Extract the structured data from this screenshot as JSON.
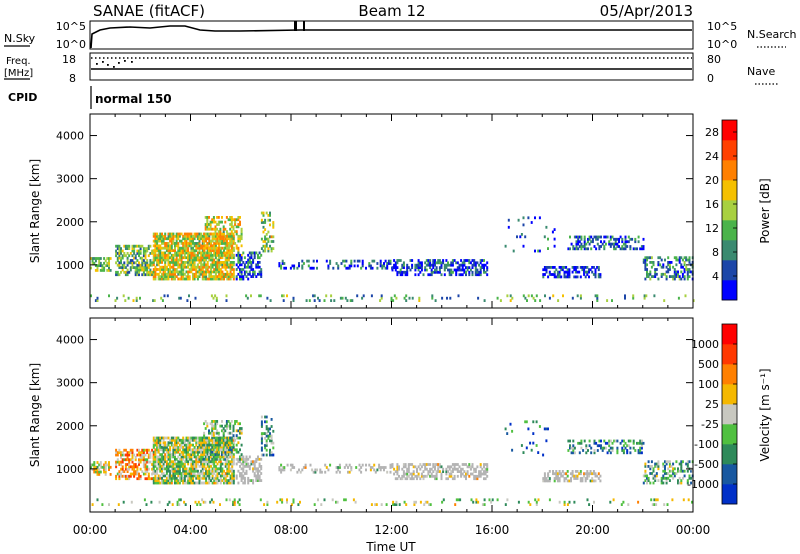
{
  "header": {
    "station": "SANAE (fitACF)",
    "beam": "Beam 12",
    "date": "05/Apr/2013"
  },
  "panels": {
    "nsky": {
      "label": "N.Sky",
      "ticks_left": [
        "10^5",
        "10^0"
      ],
      "label_right": "N.Search",
      "ticks_right": [
        "10^5",
        "10^0"
      ]
    },
    "freq": {
      "label_line1": "Freq.",
      "label_line2": "[MHz]",
      "ticks_left": [
        "18",
        "8"
      ],
      "label_right": "Nave",
      "ticks_right": [
        "80",
        "0"
      ]
    },
    "cpid": {
      "label": "CPID",
      "value": "normal 150"
    }
  },
  "colors": {
    "power_scale": [
      "#0000ff",
      "#1c46a8",
      "#3a8a70",
      "#4ab34a",
      "#a8d040",
      "#f5c000",
      "#ff8000",
      "#ff4000",
      "#ff0000"
    ],
    "velocity_scale": [
      "#0030c8",
      "#1858a0",
      "#2e8a5a",
      "#50c040",
      "#c8c8c0",
      "#f5b800",
      "#ff8000",
      "#ff3800",
      "#ff0000"
    ],
    "ground_scatter": "#b4b4b4"
  },
  "chart_data": [
    {
      "type": "heatmap",
      "name": "power",
      "ylabel": "Slant Range [km]",
      "ylim": [
        0,
        4500
      ],
      "yticks": [
        1000,
        2000,
        3000,
        4000
      ],
      "xlim": [
        0,
        24
      ],
      "colorbar": {
        "label": "Power [dB]",
        "ticks": [
          "4",
          "8",
          "12",
          "16",
          "20",
          "24",
          "28"
        ],
        "range": [
          0,
          30
        ]
      },
      "regions": [
        {
          "t0": 0.0,
          "t1": 0.8,
          "r0": 850,
          "r1": 1150,
          "level": 0.4,
          "density": 0.6
        },
        {
          "t0": 1.0,
          "t1": 2.5,
          "r0": 750,
          "r1": 1450,
          "level": 0.4,
          "density": 0.6
        },
        {
          "t0": 2.5,
          "t1": 5.7,
          "r0": 650,
          "r1": 1750,
          "level": 0.55,
          "density": 0.8
        },
        {
          "t0": 4.5,
          "t1": 6.0,
          "r0": 1200,
          "r1": 2100,
          "level": 0.55,
          "density": 0.45
        },
        {
          "t0": 5.8,
          "t1": 6.8,
          "r0": 650,
          "r1": 1300,
          "level": 0.2,
          "density": 0.5
        },
        {
          "t0": 6.8,
          "t1": 7.3,
          "r0": 1300,
          "r1": 2200,
          "level": 0.45,
          "density": 0.35
        },
        {
          "t0": 7.5,
          "t1": 12.0,
          "r0": 900,
          "r1": 1100,
          "level": 0.15,
          "density": 0.25
        },
        {
          "t0": 12.0,
          "t1": 15.8,
          "r0": 750,
          "r1": 1100,
          "level": 0.15,
          "density": 0.5
        },
        {
          "t0": 16.5,
          "t1": 18.5,
          "r0": 1300,
          "r1": 2100,
          "level": 0.15,
          "density": 0.05
        },
        {
          "t0": 18.0,
          "t1": 20.3,
          "r0": 700,
          "r1": 950,
          "level": 0.1,
          "density": 0.55
        },
        {
          "t0": 19.0,
          "t1": 22.0,
          "r0": 1350,
          "r1": 1650,
          "level": 0.2,
          "density": 0.4
        },
        {
          "t0": 22.0,
          "t1": 24.0,
          "r0": 650,
          "r1": 1200,
          "level": 0.25,
          "density": 0.4
        },
        {
          "t0": 0.0,
          "t1": 24.0,
          "r0": 150,
          "r1": 300,
          "level": 0.35,
          "density": 0.12
        }
      ]
    },
    {
      "type": "heatmap",
      "name": "velocity",
      "ylabel": "Slant Range [km]",
      "ylim": [
        0,
        4500
      ],
      "yticks": [
        1000,
        2000,
        3000,
        4000
      ],
      "xlim": [
        0,
        24
      ],
      "xlabel": "Time UT",
      "xticks": [
        "00:00",
        "04:00",
        "08:00",
        "12:00",
        "16:00",
        "20:00",
        "00:00"
      ],
      "colorbar": {
        "label": "Velocity [m s⁻¹]",
        "ticks": [
          "1000",
          "500",
          "100",
          "25",
          "-25",
          "-100",
          "-500",
          "-1000"
        ],
        "range": [
          -1000,
          1000
        ]
      },
      "regions": [
        {
          "t0": 0.0,
          "t1": 0.8,
          "r0": 850,
          "r1": 1150,
          "level": 0.55,
          "density": 0.6,
          "gs": false
        },
        {
          "t0": 1.0,
          "t1": 2.5,
          "r0": 750,
          "r1": 1450,
          "level": 0.65,
          "density": 0.6,
          "gs": false
        },
        {
          "t0": 2.5,
          "t1": 5.7,
          "r0": 650,
          "r1": 1750,
          "level": 0.45,
          "density": 0.8,
          "gs": false
        },
        {
          "t0": 4.5,
          "t1": 6.0,
          "r0": 1200,
          "r1": 2100,
          "level": 0.4,
          "density": 0.45,
          "gs": false
        },
        {
          "t0": 5.8,
          "t1": 6.8,
          "r0": 650,
          "r1": 1300,
          "level": 0.5,
          "density": 0.5,
          "gs": true
        },
        {
          "t0": 6.8,
          "t1": 7.3,
          "r0": 1300,
          "r1": 2200,
          "level": 0.3,
          "density": 0.35,
          "gs": false
        },
        {
          "t0": 7.5,
          "t1": 12.0,
          "r0": 900,
          "r1": 1100,
          "level": 0.5,
          "density": 0.25,
          "gs": true
        },
        {
          "t0": 12.0,
          "t1": 15.8,
          "r0": 750,
          "r1": 1100,
          "level": 0.5,
          "density": 0.5,
          "gs": true
        },
        {
          "t0": 16.5,
          "t1": 18.5,
          "r0": 1300,
          "r1": 2100,
          "level": 0.2,
          "density": 0.05,
          "gs": false
        },
        {
          "t0": 18.0,
          "t1": 20.3,
          "r0": 700,
          "r1": 950,
          "level": 0.5,
          "density": 0.55,
          "gs": true
        },
        {
          "t0": 19.0,
          "t1": 22.0,
          "r0": 1350,
          "r1": 1650,
          "level": 0.28,
          "density": 0.4,
          "gs": false
        },
        {
          "t0": 22.0,
          "t1": 24.0,
          "r0": 650,
          "r1": 1200,
          "level": 0.35,
          "density": 0.4,
          "gs": false
        },
        {
          "t0": 0.0,
          "t1": 24.0,
          "r0": 150,
          "r1": 300,
          "level": 0.45,
          "density": 0.12,
          "gs": false
        }
      ]
    }
  ]
}
